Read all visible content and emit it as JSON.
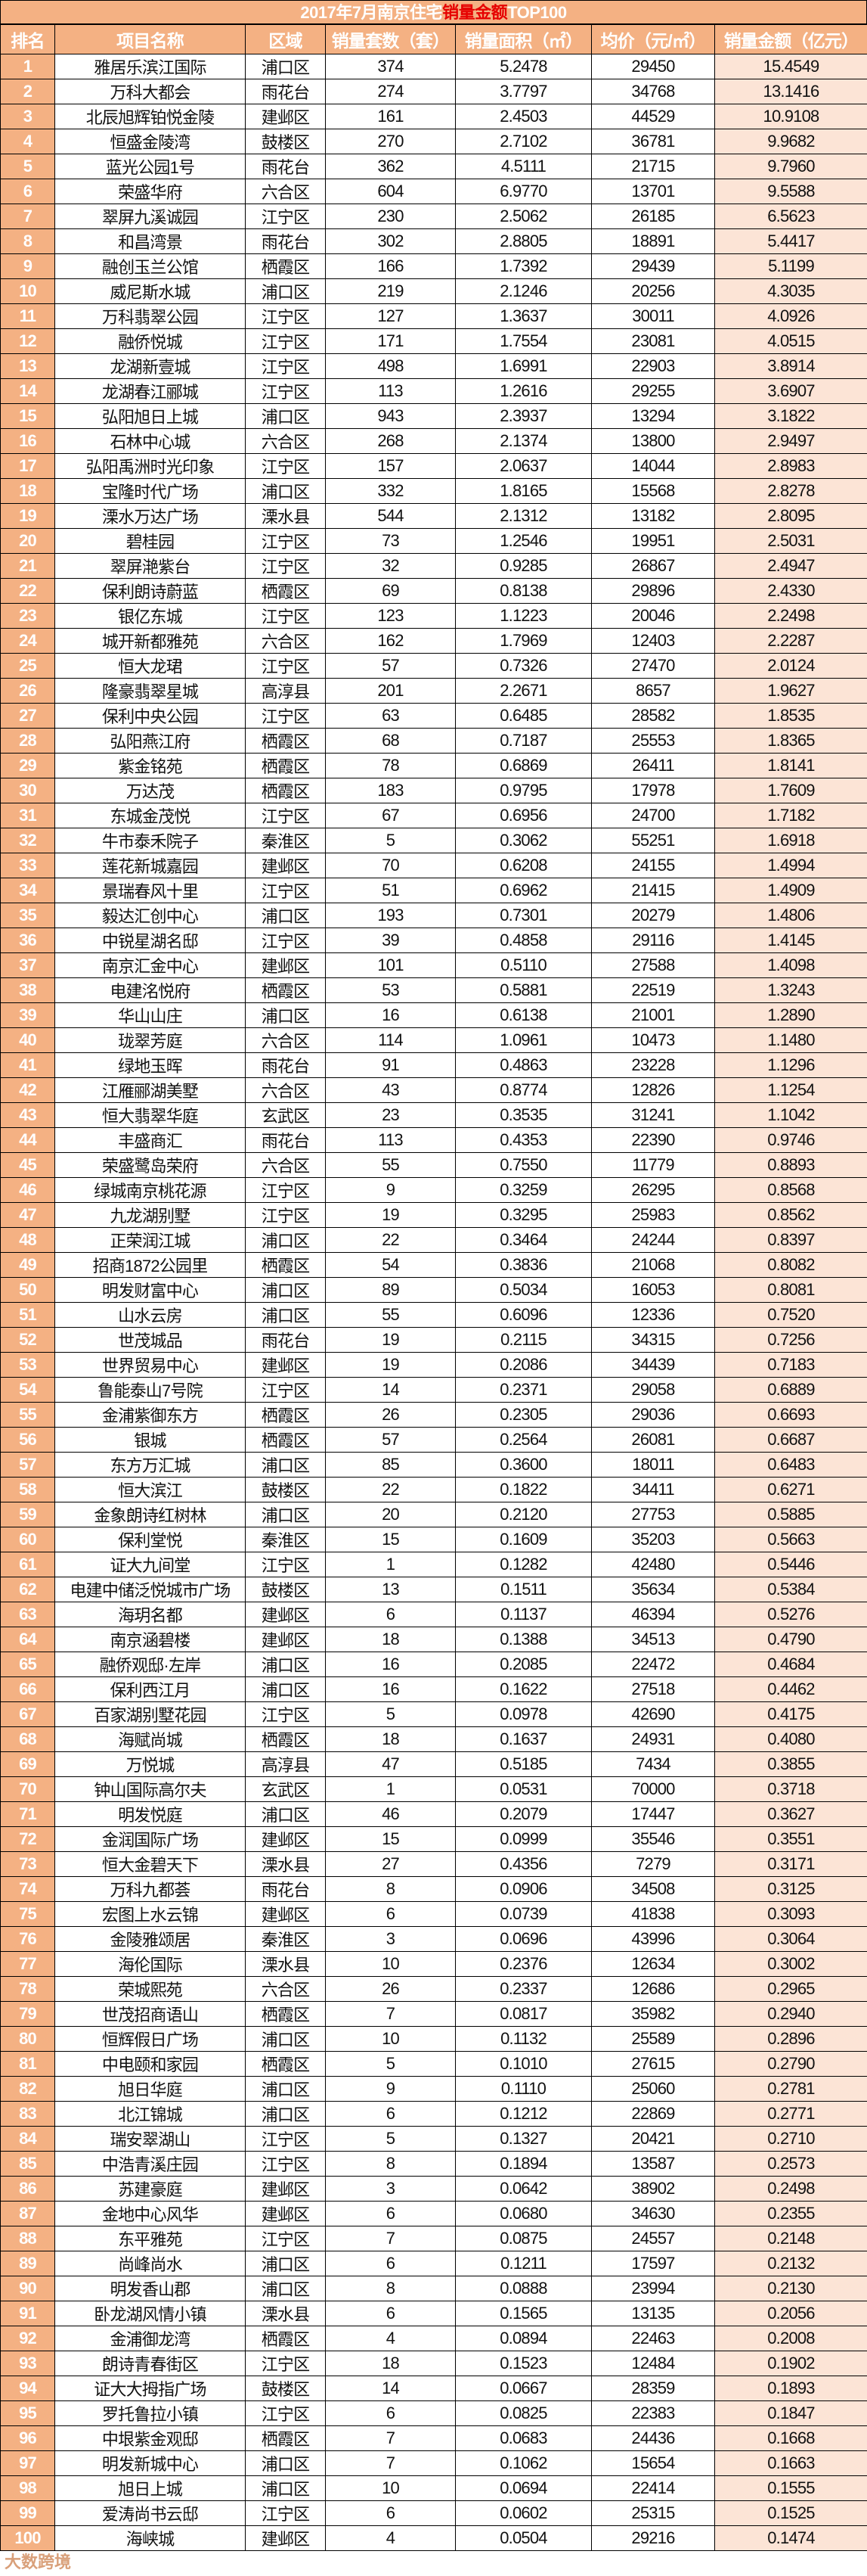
{
  "title": {
    "prefix": "2017年7月南京住宅",
    "highlight": "销量金额",
    "suffix": "TOP100"
  },
  "colors": {
    "header_bg": "#f4b183",
    "header_text": "#ffffff",
    "highlight": "#e60000",
    "amount_bg": "#fce4d6",
    "border": "#000000"
  },
  "columns": [
    "排名",
    "项目名称",
    "区域",
    "销量套数（套）",
    "销量面积（㎡）",
    "均价（元/㎡）",
    "销量金额（亿元）"
  ],
  "rows": [
    [
      "1",
      "雅居乐滨江国际",
      "浦口区",
      "374",
      "5.2478",
      "29450",
      "15.4549"
    ],
    [
      "2",
      "万科大都会",
      "雨花台",
      "274",
      "3.7797",
      "34768",
      "13.1416"
    ],
    [
      "3",
      "北辰旭辉铂悦金陵",
      "建邺区",
      "161",
      "2.4503",
      "44529",
      "10.9108"
    ],
    [
      "4",
      "恒盛金陵湾",
      "鼓楼区",
      "270",
      "2.7102",
      "36781",
      "9.9682"
    ],
    [
      "5",
      "蓝光公园1号",
      "雨花台",
      "362",
      "4.5111",
      "21715",
      "9.7960"
    ],
    [
      "6",
      "荣盛华府",
      "六合区",
      "604",
      "6.9770",
      "13701",
      "9.5588"
    ],
    [
      "7",
      "翠屏九溪诚园",
      "江宁区",
      "230",
      "2.5062",
      "26185",
      "6.5623"
    ],
    [
      "8",
      "和昌湾景",
      "雨花台",
      "302",
      "2.8805",
      "18891",
      "5.4417"
    ],
    [
      "9",
      "融创玉兰公馆",
      "栖霞区",
      "166",
      "1.7392",
      "29439",
      "5.1199"
    ],
    [
      "10",
      "威尼斯水城",
      "浦口区",
      "219",
      "2.1246",
      "20256",
      "4.3035"
    ],
    [
      "11",
      "万科翡翠公园",
      "江宁区",
      "127",
      "1.3637",
      "30011",
      "4.0926"
    ],
    [
      "12",
      "融侨悦城",
      "江宁区",
      "171",
      "1.7554",
      "23081",
      "4.0515"
    ],
    [
      "13",
      "龙湖新壹城",
      "江宁区",
      "498",
      "1.6991",
      "22903",
      "3.8914"
    ],
    [
      "14",
      "龙湖春江郦城",
      "江宁区",
      "113",
      "1.2616",
      "29255",
      "3.6907"
    ],
    [
      "15",
      "弘阳旭日上城",
      "浦口区",
      "943",
      "2.3937",
      "13294",
      "3.1822"
    ],
    [
      "16",
      "石林中心城",
      "六合区",
      "268",
      "2.1374",
      "13800",
      "2.9497"
    ],
    [
      "17",
      "弘阳禹洲时光印象",
      "江宁区",
      "157",
      "2.0637",
      "14044",
      "2.8983"
    ],
    [
      "18",
      "宝隆时代广场",
      "浦口区",
      "332",
      "1.8165",
      "15568",
      "2.8278"
    ],
    [
      "19",
      "溧水万达广场",
      "溧水县",
      "544",
      "2.1312",
      "13182",
      "2.8095"
    ],
    [
      "20",
      "碧桂园",
      "江宁区",
      "73",
      "1.2546",
      "19951",
      "2.5031"
    ],
    [
      "21",
      "翠屏滟紫台",
      "江宁区",
      "32",
      "0.9285",
      "26867",
      "2.4947"
    ],
    [
      "22",
      "保利朗诗蔚蓝",
      "栖霞区",
      "69",
      "0.8138",
      "29896",
      "2.4330"
    ],
    [
      "23",
      "银亿东城",
      "江宁区",
      "123",
      "1.1223",
      "20046",
      "2.2498"
    ],
    [
      "24",
      "城开新都雅苑",
      "六合区",
      "162",
      "1.7969",
      "12403",
      "2.2287"
    ],
    [
      "25",
      "恒大龙珺",
      "江宁区",
      "57",
      "0.7326",
      "27470",
      "2.0124"
    ],
    [
      "26",
      "隆豪翡翠星城",
      "高淳县",
      "201",
      "2.2671",
      "8657",
      "1.9627"
    ],
    [
      "27",
      "保利中央公园",
      "江宁区",
      "63",
      "0.6485",
      "28582",
      "1.8535"
    ],
    [
      "28",
      "弘阳燕江府",
      "栖霞区",
      "68",
      "0.7187",
      "25553",
      "1.8365"
    ],
    [
      "29",
      "紫金铭苑",
      "栖霞区",
      "78",
      "0.6869",
      "26411",
      "1.8141"
    ],
    [
      "30",
      "万达茂",
      "栖霞区",
      "183",
      "0.9795",
      "17978",
      "1.7609"
    ],
    [
      "31",
      "东城金茂悦",
      "江宁区",
      "67",
      "0.6956",
      "24700",
      "1.7182"
    ],
    [
      "32",
      "牛市泰禾院子",
      "秦淮区",
      "5",
      "0.3062",
      "55251",
      "1.6918"
    ],
    [
      "33",
      "莲花新城嘉园",
      "建邺区",
      "70",
      "0.6208",
      "24155",
      "1.4994"
    ],
    [
      "34",
      "景瑞春风十里",
      "江宁区",
      "51",
      "0.6962",
      "21415",
      "1.4909"
    ],
    [
      "35",
      "毅达汇创中心",
      "浦口区",
      "193",
      "0.7301",
      "20279",
      "1.4806"
    ],
    [
      "36",
      "中锐星湖名邸",
      "江宁区",
      "39",
      "0.4858",
      "29116",
      "1.4145"
    ],
    [
      "37",
      "南京汇金中心",
      "建邺区",
      "101",
      "0.5110",
      "27588",
      "1.4098"
    ],
    [
      "38",
      "电建洺悦府",
      "栖霞区",
      "53",
      "0.5881",
      "22519",
      "1.3243"
    ],
    [
      "39",
      "华山山庄",
      "浦口区",
      "16",
      "0.6138",
      "21001",
      "1.2890"
    ],
    [
      "40",
      "珑翠芳庭",
      "六合区",
      "114",
      "1.0961",
      "10473",
      "1.1480"
    ],
    [
      "41",
      "绿地玉晖",
      "雨花台",
      "91",
      "0.4863",
      "23228",
      "1.1296"
    ],
    [
      "42",
      "江雁郦湖美墅",
      "六合区",
      "43",
      "0.8774",
      "12826",
      "1.1254"
    ],
    [
      "43",
      "恒大翡翠华庭",
      "玄武区",
      "23",
      "0.3535",
      "31241",
      "1.1042"
    ],
    [
      "44",
      "丰盛商汇",
      "雨花台",
      "113",
      "0.4353",
      "22390",
      "0.9746"
    ],
    [
      "45",
      "荣盛鹭岛荣府",
      "六合区",
      "55",
      "0.7550",
      "11779",
      "0.8893"
    ],
    [
      "46",
      "绿城南京桃花源",
      "江宁区",
      "9",
      "0.3259",
      "26295",
      "0.8568"
    ],
    [
      "47",
      "九龙湖别墅",
      "江宁区",
      "19",
      "0.3295",
      "25983",
      "0.8562"
    ],
    [
      "48",
      "正荣润江城",
      "浦口区",
      "22",
      "0.3464",
      "24244",
      "0.8397"
    ],
    [
      "49",
      "招商1872公园里",
      "栖霞区",
      "54",
      "0.3836",
      "21068",
      "0.8082"
    ],
    [
      "50",
      "明发财富中心",
      "浦口区",
      "89",
      "0.5034",
      "16053",
      "0.8081"
    ],
    [
      "51",
      "山水云房",
      "浦口区",
      "55",
      "0.6096",
      "12336",
      "0.7520"
    ],
    [
      "52",
      "世茂城品",
      "雨花台",
      "19",
      "0.2115",
      "34315",
      "0.7256"
    ],
    [
      "53",
      "世界贸易中心",
      "建邺区",
      "19",
      "0.2086",
      "34439",
      "0.7183"
    ],
    [
      "54",
      "鲁能泰山7号院",
      "江宁区",
      "14",
      "0.2371",
      "29058",
      "0.6889"
    ],
    [
      "55",
      "金浦紫御东方",
      "栖霞区",
      "26",
      "0.2305",
      "29036",
      "0.6693"
    ],
    [
      "56",
      "银城",
      "栖霞区",
      "57",
      "0.2564",
      "26081",
      "0.6687"
    ],
    [
      "57",
      "东方万汇城",
      "浦口区",
      "85",
      "0.3600",
      "18011",
      "0.6483"
    ],
    [
      "58",
      "恒大滨江",
      "鼓楼区",
      "22",
      "0.1822",
      "34411",
      "0.6271"
    ],
    [
      "59",
      "金象朗诗红树林",
      "浦口区",
      "20",
      "0.2120",
      "27753",
      "0.5885"
    ],
    [
      "60",
      "保利堂悦",
      "秦淮区",
      "15",
      "0.1609",
      "35203",
      "0.5663"
    ],
    [
      "61",
      "证大九间堂",
      "江宁区",
      "1",
      "0.1282",
      "42480",
      "0.5446"
    ],
    [
      "62",
      "电建中储泛悦城市广场",
      "鼓楼区",
      "13",
      "0.1511",
      "35634",
      "0.5384"
    ],
    [
      "63",
      "海玥名都",
      "建邺区",
      "6",
      "0.1137",
      "46394",
      "0.5276"
    ],
    [
      "64",
      "南京涵碧楼",
      "建邺区",
      "18",
      "0.1388",
      "34513",
      "0.4790"
    ],
    [
      "65",
      "融侨观邸·左岸",
      "浦口区",
      "16",
      "0.2085",
      "22472",
      "0.4684"
    ],
    [
      "66",
      "保利西江月",
      "浦口区",
      "16",
      "0.1622",
      "27518",
      "0.4462"
    ],
    [
      "67",
      "百家湖别墅花园",
      "江宁区",
      "5",
      "0.0978",
      "42690",
      "0.4175"
    ],
    [
      "68",
      "海赋尚城",
      "栖霞区",
      "18",
      "0.1637",
      "24931",
      "0.4080"
    ],
    [
      "69",
      "万悦城",
      "高淳县",
      "47",
      "0.5185",
      "7434",
      "0.3855"
    ],
    [
      "70",
      "钟山国际高尔夫",
      "玄武区",
      "1",
      "0.0531",
      "70000",
      "0.3718"
    ],
    [
      "71",
      "明发悦庭",
      "浦口区",
      "46",
      "0.2079",
      "17447",
      "0.3627"
    ],
    [
      "72",
      "金润国际广场",
      "建邺区",
      "15",
      "0.0999",
      "35546",
      "0.3551"
    ],
    [
      "73",
      "恒大金碧天下",
      "溧水县",
      "27",
      "0.4356",
      "7279",
      "0.3171"
    ],
    [
      "74",
      "万科九都荟",
      "雨花台",
      "8",
      "0.0906",
      "34508",
      "0.3125"
    ],
    [
      "75",
      "宏图上水云锦",
      "建邺区",
      "6",
      "0.0739",
      "41838",
      "0.3093"
    ],
    [
      "76",
      "金陵雅颂居",
      "秦淮区",
      "3",
      "0.0696",
      "43996",
      "0.3064"
    ],
    [
      "77",
      "海伦国际",
      "溧水县",
      "10",
      "0.2376",
      "12634",
      "0.3002"
    ],
    [
      "78",
      "荣城熙苑",
      "六合区",
      "26",
      "0.2337",
      "12686",
      "0.2965"
    ],
    [
      "79",
      "世茂招商语山",
      "栖霞区",
      "7",
      "0.0817",
      "35982",
      "0.2940"
    ],
    [
      "80",
      "恒辉假日广场",
      "浦口区",
      "10",
      "0.1132",
      "25589",
      "0.2896"
    ],
    [
      "81",
      "中电颐和家园",
      "栖霞区",
      "5",
      "0.1010",
      "27615",
      "0.2790"
    ],
    [
      "82",
      "旭日华庭",
      "浦口区",
      "9",
      "0.1110",
      "25060",
      "0.2781"
    ],
    [
      "83",
      "北江锦城",
      "浦口区",
      "6",
      "0.1212",
      "22869",
      "0.2771"
    ],
    [
      "84",
      "瑞安翠湖山",
      "江宁区",
      "5",
      "0.1327",
      "20421",
      "0.2710"
    ],
    [
      "85",
      "中浩青溪庄园",
      "江宁区",
      "8",
      "0.1894",
      "13587",
      "0.2573"
    ],
    [
      "86",
      "苏建豪庭",
      "建邺区",
      "3",
      "0.0642",
      "38902",
      "0.2498"
    ],
    [
      "87",
      "金地中心风华",
      "建邺区",
      "6",
      "0.0680",
      "34630",
      "0.2355"
    ],
    [
      "88",
      "东平雅苑",
      "江宁区",
      "7",
      "0.0875",
      "24557",
      "0.2148"
    ],
    [
      "89",
      "尚峰尚水",
      "浦口区",
      "6",
      "0.1211",
      "17597",
      "0.2132"
    ],
    [
      "90",
      "明发香山郡",
      "浦口区",
      "8",
      "0.0888",
      "23994",
      "0.2130"
    ],
    [
      "91",
      "卧龙湖风情小镇",
      "溧水县",
      "6",
      "0.1565",
      "13135",
      "0.2056"
    ],
    [
      "92",
      "金浦御龙湾",
      "栖霞区",
      "4",
      "0.0894",
      "22463",
      "0.2008"
    ],
    [
      "93",
      "朗诗青春街区",
      "江宁区",
      "18",
      "0.1523",
      "12484",
      "0.1902"
    ],
    [
      "94",
      "证大大拇指广场",
      "鼓楼区",
      "14",
      "0.0667",
      "28359",
      "0.1893"
    ],
    [
      "95",
      "罗托鲁拉小镇",
      "江宁区",
      "6",
      "0.0825",
      "22383",
      "0.1847"
    ],
    [
      "96",
      "中垠紫金观邸",
      "栖霞区",
      "7",
      "0.0683",
      "24436",
      "0.1668"
    ],
    [
      "97",
      "明发新城中心",
      "浦口区",
      "7",
      "0.1062",
      "15654",
      "0.1663"
    ],
    [
      "98",
      "旭日上城",
      "浦口区",
      "10",
      "0.0694",
      "22414",
      "0.1555"
    ],
    [
      "99",
      "爱涛尚书云邸",
      "江宁区",
      "6",
      "0.0602",
      "25315",
      "0.1525"
    ],
    [
      "100",
      "海峡城",
      "建邺区",
      "4",
      "0.0504",
      "29216",
      "0.1474"
    ]
  ],
  "watermark": "大数跨境"
}
